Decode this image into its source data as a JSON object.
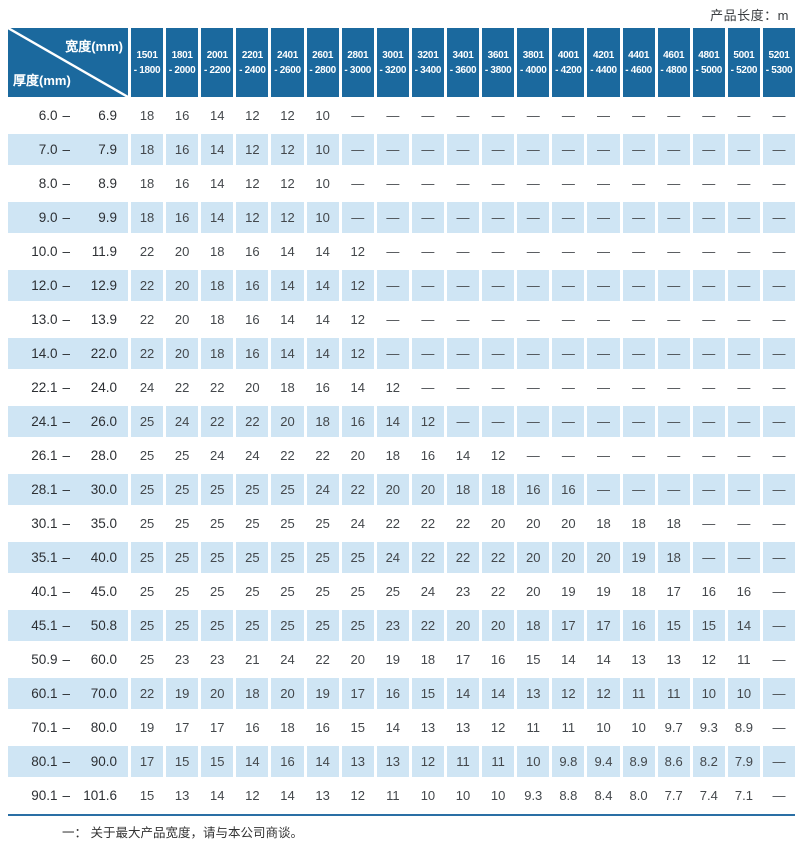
{
  "page": {
    "top_note": "产品长度：m",
    "footnote": "一： 关于最大产品宽度，请与本公司商谈。"
  },
  "colors": {
    "header_blue": "#1b699e",
    "row_blue": "#cfe5f4",
    "rule_blue": "#2a6fa5"
  },
  "table": {
    "corner": {
      "width_label": "宽度(mm)",
      "thickness_label": "厚度(mm)"
    },
    "range_separator": "–",
    "columns": [
      {
        "line1": "1501",
        "line2": "- 1800"
      },
      {
        "line1": "1801",
        "line2": "- 2000"
      },
      {
        "line1": "2001",
        "line2": "- 2200"
      },
      {
        "line1": "2201",
        "line2": "- 2400"
      },
      {
        "line1": "2401",
        "line2": "- 2600"
      },
      {
        "line1": "2601",
        "line2": "- 2800"
      },
      {
        "line1": "2801",
        "line2": "- 3000"
      },
      {
        "line1": "3001",
        "line2": "- 3200"
      },
      {
        "line1": "3201",
        "line2": "- 3400"
      },
      {
        "line1": "3401",
        "line2": "- 3600"
      },
      {
        "line1": "3601",
        "line2": "- 3800"
      },
      {
        "line1": "3801",
        "line2": "- 4000"
      },
      {
        "line1": "4001",
        "line2": "- 4200"
      },
      {
        "line1": "4201",
        "line2": "- 4400"
      },
      {
        "line1": "4401",
        "line2": "- 4600"
      },
      {
        "line1": "4601",
        "line2": "- 4800"
      },
      {
        "line1": "4801",
        "line2": "- 5000"
      },
      {
        "line1": "5001",
        "line2": "- 5200"
      },
      {
        "line1": "5201",
        "line2": "- 5300"
      }
    ],
    "rows": [
      {
        "from": "6.0",
        "to": "6.9",
        "values": [
          "18",
          "16",
          "14",
          "12",
          "12",
          "10",
          "—",
          "—",
          "—",
          "—",
          "—",
          "—",
          "—",
          "—",
          "—",
          "—",
          "—",
          "—",
          "—"
        ]
      },
      {
        "from": "7.0",
        "to": "7.9",
        "values": [
          "18",
          "16",
          "14",
          "12",
          "12",
          "10",
          "—",
          "—",
          "—",
          "—",
          "—",
          "—",
          "—",
          "—",
          "—",
          "—",
          "—",
          "—",
          "—"
        ]
      },
      {
        "from": "8.0",
        "to": "8.9",
        "values": [
          "18",
          "16",
          "14",
          "12",
          "12",
          "10",
          "—",
          "—",
          "—",
          "—",
          "—",
          "—",
          "—",
          "—",
          "—",
          "—",
          "—",
          "—",
          "—"
        ]
      },
      {
        "from": "9.0",
        "to": "9.9",
        "values": [
          "18",
          "16",
          "14",
          "12",
          "12",
          "10",
          "—",
          "—",
          "—",
          "—",
          "—",
          "—",
          "—",
          "—",
          "—",
          "—",
          "—",
          "—",
          "—"
        ]
      },
      {
        "from": "10.0",
        "to": "11.9",
        "values": [
          "22",
          "20",
          "18",
          "16",
          "14",
          "14",
          "12",
          "—",
          "—",
          "—",
          "—",
          "—",
          "—",
          "—",
          "—",
          "—",
          "—",
          "—",
          "—"
        ]
      },
      {
        "from": "12.0",
        "to": "12.9",
        "values": [
          "22",
          "20",
          "18",
          "16",
          "14",
          "14",
          "12",
          "—",
          "—",
          "—",
          "—",
          "—",
          "—",
          "—",
          "—",
          "—",
          "—",
          "—",
          "—"
        ]
      },
      {
        "from": "13.0",
        "to": "13.9",
        "values": [
          "22",
          "20",
          "18",
          "16",
          "14",
          "14",
          "12",
          "—",
          "—",
          "—",
          "—",
          "—",
          "—",
          "—",
          "—",
          "—",
          "—",
          "—",
          "—"
        ]
      },
      {
        "from": "14.0",
        "to": "22.0",
        "values": [
          "22",
          "20",
          "18",
          "16",
          "14",
          "14",
          "12",
          "—",
          "—",
          "—",
          "—",
          "—",
          "—",
          "—",
          "—",
          "—",
          "—",
          "—",
          "—"
        ]
      },
      {
        "from": "22.1",
        "to": "24.0",
        "values": [
          "24",
          "22",
          "22",
          "20",
          "18",
          "16",
          "14",
          "12",
          "—",
          "—",
          "—",
          "—",
          "—",
          "—",
          "—",
          "—",
          "—",
          "—",
          "—"
        ]
      },
      {
        "from": "24.1",
        "to": "26.0",
        "values": [
          "25",
          "24",
          "22",
          "22",
          "20",
          "18",
          "16",
          "14",
          "12",
          "—",
          "—",
          "—",
          "—",
          "—",
          "—",
          "—",
          "—",
          "—",
          "—"
        ]
      },
      {
        "from": "26.1",
        "to": "28.0",
        "values": [
          "25",
          "25",
          "24",
          "24",
          "22",
          "22",
          "20",
          "18",
          "16",
          "14",
          "12",
          "—",
          "—",
          "—",
          "—",
          "—",
          "—",
          "—",
          "—"
        ]
      },
      {
        "from": "28.1",
        "to": "30.0",
        "values": [
          "25",
          "25",
          "25",
          "25",
          "25",
          "24",
          "22",
          "20",
          "20",
          "18",
          "18",
          "16",
          "16",
          "—",
          "—",
          "—",
          "—",
          "—",
          "—"
        ]
      },
      {
        "from": "30.1",
        "to": "35.0",
        "values": [
          "25",
          "25",
          "25",
          "25",
          "25",
          "25",
          "24",
          "22",
          "22",
          "22",
          "20",
          "20",
          "20",
          "18",
          "18",
          "18",
          "—",
          "—",
          "—"
        ]
      },
      {
        "from": "35.1",
        "to": "40.0",
        "values": [
          "25",
          "25",
          "25",
          "25",
          "25",
          "25",
          "25",
          "24",
          "22",
          "22",
          "22",
          "20",
          "20",
          "20",
          "19",
          "18",
          "—",
          "—",
          "—"
        ]
      },
      {
        "from": "40.1",
        "to": "45.0",
        "values": [
          "25",
          "25",
          "25",
          "25",
          "25",
          "25",
          "25",
          "25",
          "24",
          "23",
          "22",
          "20",
          "19",
          "19",
          "18",
          "17",
          "16",
          "16",
          "—"
        ]
      },
      {
        "from": "45.1",
        "to": "50.8",
        "values": [
          "25",
          "25",
          "25",
          "25",
          "25",
          "25",
          "25",
          "23",
          "22",
          "20",
          "20",
          "18",
          "17",
          "17",
          "16",
          "15",
          "15",
          "14",
          "—"
        ]
      },
      {
        "from": "50.9",
        "to": "60.0",
        "values": [
          "25",
          "23",
          "23",
          "21",
          "24",
          "22",
          "20",
          "19",
          "18",
          "17",
          "16",
          "15",
          "14",
          "14",
          "13",
          "13",
          "12",
          "11",
          "—"
        ]
      },
      {
        "from": "60.1",
        "to": "70.0",
        "values": [
          "22",
          "19",
          "20",
          "18",
          "20",
          "19",
          "17",
          "16",
          "15",
          "14",
          "14",
          "13",
          "12",
          "12",
          "11",
          "11",
          "10",
          "10",
          "—"
        ]
      },
      {
        "from": "70.1",
        "to": "80.0",
        "values": [
          "19",
          "17",
          "17",
          "16",
          "18",
          "16",
          "15",
          "14",
          "13",
          "13",
          "12",
          "11",
          "11",
          "10",
          "10",
          "9.7",
          "9.3",
          "8.9",
          "—"
        ]
      },
      {
        "from": "80.1",
        "to": "90.0",
        "values": [
          "17",
          "15",
          "15",
          "14",
          "16",
          "14",
          "13",
          "13",
          "12",
          "11",
          "11",
          "10",
          "9.8",
          "9.4",
          "8.9",
          "8.6",
          "8.2",
          "7.9",
          "—"
        ]
      },
      {
        "from": "90.1",
        "to": "101.6",
        "values": [
          "15",
          "13",
          "14",
          "12",
          "14",
          "13",
          "12",
          "11",
          "10",
          "10",
          "10",
          "9.3",
          "8.8",
          "8.4",
          "8.0",
          "7.7",
          "7.4",
          "7.1",
          "—"
        ]
      }
    ]
  }
}
